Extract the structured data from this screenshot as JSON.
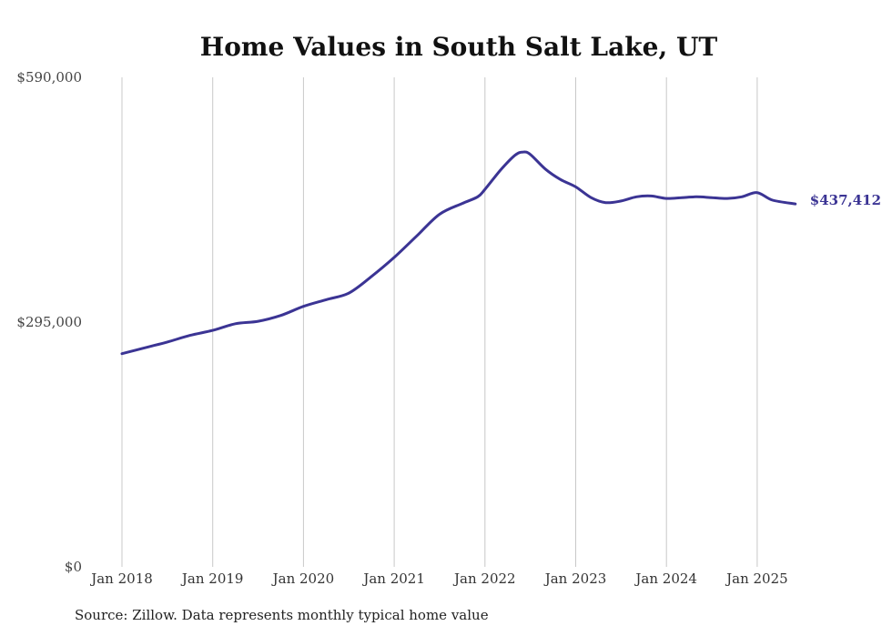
{
  "chart_data": {
    "type": "line",
    "title": "Home Values in South Salt Lake, UT",
    "xlabel": "",
    "ylabel": "",
    "ylim": [
      0,
      590000
    ],
    "yticks": [
      {
        "value": 0,
        "label": "$0"
      },
      {
        "value": 295000,
        "label": "$295,000"
      },
      {
        "value": 590000,
        "label": "$590,000"
      }
    ],
    "xlim": [
      2018.0,
      2025.42
    ],
    "xticks": [
      {
        "value": 2018,
        "label": "Jan 2018"
      },
      {
        "value": 2019,
        "label": "Jan 2019"
      },
      {
        "value": 2020,
        "label": "Jan 2020"
      },
      {
        "value": 2021,
        "label": "Jan 2021"
      },
      {
        "value": 2022,
        "label": "Jan 2022"
      },
      {
        "value": 2023,
        "label": "Jan 2023"
      },
      {
        "value": 2024,
        "label": "Jan 2024"
      },
      {
        "value": 2025,
        "label": "Jan 2025"
      }
    ],
    "grid": "vertical",
    "legend": "none",
    "color": "#3b3494",
    "end_label": "$437,412",
    "series": [
      {
        "x": [
          2018.0,
          2018.25,
          2018.5,
          2018.75,
          2019.0,
          2019.25,
          2019.5,
          2019.75,
          2020.0,
          2020.25,
          2020.5,
          2020.75,
          2021.0,
          2021.25,
          2021.5,
          2021.75,
          2021.92,
          2022.0,
          2022.17,
          2022.33,
          2022.42,
          2022.5,
          2022.67,
          2022.83,
          2023.0,
          2023.17,
          2023.33,
          2023.5,
          2023.67,
          2023.83,
          2024.0,
          2024.17,
          2024.33,
          2024.5,
          2024.67,
          2024.83,
          2025.0,
          2025.17,
          2025.42
        ],
        "y": [
          257000,
          264000,
          271000,
          279000,
          285000,
          293000,
          296000,
          303000,
          314000,
          322000,
          330000,
          350000,
          373000,
          399000,
          425000,
          438000,
          446000,
          455000,
          478000,
          496000,
          500000,
          497000,
          479000,
          467000,
          458000,
          445000,
          439000,
          441000,
          446000,
          447000,
          444000,
          445000,
          446000,
          445000,
          444000,
          446000,
          451000,
          442000,
          437412
        ]
      }
    ]
  },
  "footer": {
    "source": "Source: Zillow. Data represents monthly typical home value"
  }
}
